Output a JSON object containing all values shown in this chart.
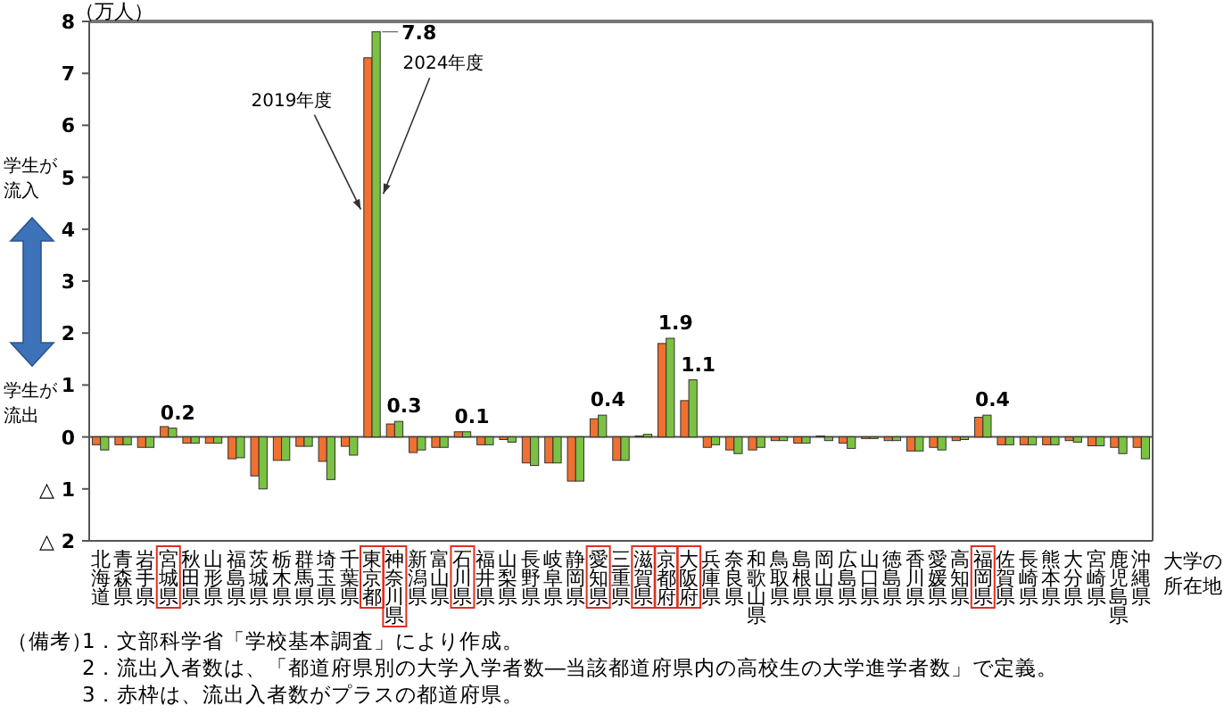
{
  "chart_data": {
    "type": "bar",
    "ylabel": "（万人）",
    "xlabel": "大学の所在地",
    "categories": [
      "北海道",
      "青森県",
      "岩手県",
      "宮城県",
      "秋田県",
      "山形県",
      "福島県",
      "茨城県",
      "栃木県",
      "群馬県",
      "埼玉県",
      "千葉県",
      "東京都",
      "神奈川県",
      "新潟県",
      "富山県",
      "石川県",
      "福井県",
      "山梨県",
      "長野県",
      "岐阜県",
      "静岡県",
      "愛知県",
      "三重県",
      "滋賀県",
      "京都府",
      "大阪府",
      "兵庫県",
      "奈良県",
      "和歌山県",
      "鳥取県",
      "島根県",
      "岡山県",
      "広島県",
      "山口県",
      "徳島県",
      "香川県",
      "愛媛県",
      "高知県",
      "福岡県",
      "佐賀県",
      "長崎県",
      "熊本県",
      "大分県",
      "宮崎県",
      "鹿児島県",
      "沖縄県"
    ],
    "series": [
      {
        "name": "2019年度",
        "color": "#f07030",
        "values": [
          -0.15,
          -0.15,
          -0.2,
          0.2,
          -0.12,
          -0.12,
          -0.42,
          -0.75,
          -0.45,
          -0.18,
          -0.47,
          -0.18,
          7.3,
          0.25,
          -0.3,
          -0.2,
          0.1,
          -0.15,
          -0.05,
          -0.5,
          -0.5,
          -0.85,
          0.35,
          -0.45,
          0.02,
          1.8,
          0.7,
          -0.2,
          -0.25,
          -0.25,
          -0.07,
          -0.12,
          0.02,
          -0.12,
          -0.03,
          -0.07,
          -0.27,
          -0.2,
          -0.07,
          0.38,
          -0.15,
          -0.15,
          -0.15,
          -0.07,
          -0.17,
          -0.2,
          -0.2
        ]
      },
      {
        "name": "2024年度",
        "color": "#7cc242",
        "values": [
          -0.25,
          -0.15,
          -0.2,
          0.17,
          -0.12,
          -0.12,
          -0.4,
          -1.0,
          -0.45,
          -0.18,
          -0.82,
          -0.35,
          7.8,
          0.3,
          -0.25,
          -0.2,
          0.1,
          -0.15,
          -0.1,
          -0.55,
          -0.5,
          -0.85,
          0.42,
          -0.45,
          0.05,
          1.9,
          1.1,
          -0.15,
          -0.32,
          -0.2,
          -0.07,
          -0.12,
          -0.07,
          -0.22,
          -0.03,
          -0.07,
          -0.27,
          -0.25,
          -0.05,
          0.42,
          -0.15,
          -0.15,
          -0.15,
          -0.1,
          -0.17,
          -0.32,
          -0.42
        ],
        "value_labels": [
          null,
          null,
          null,
          "0.2",
          null,
          null,
          null,
          null,
          null,
          null,
          null,
          null,
          "7.8",
          "0.3",
          null,
          null,
          "0.1",
          null,
          null,
          null,
          null,
          null,
          "0.4",
          null,
          null,
          "1.9",
          "1.1",
          null,
          null,
          null,
          null,
          null,
          null,
          null,
          null,
          null,
          null,
          null,
          null,
          "0.4",
          null,
          null,
          null,
          null,
          null,
          null,
          null
        ]
      }
    ],
    "ylim": [
      -2,
      8
    ],
    "yticks": [
      {
        "value": -2,
        "label": "△ 2"
      },
      {
        "value": -1,
        "label": "△ 1"
      },
      0,
      1,
      2,
      3,
      4,
      5,
      6,
      7,
      8
    ],
    "annotations": [
      "学生が流入",
      "学生が流出",
      "（備考）",
      "1．文部科学省「学校基本調査」により作成。",
      "2．流出入者数は、「都道府県別の大学入学者数―当該都道府県内の高校生の大学進学者数」で定義。",
      "3．赤枠は、流出入者数がプラスの都道府県。"
    ]
  }
}
